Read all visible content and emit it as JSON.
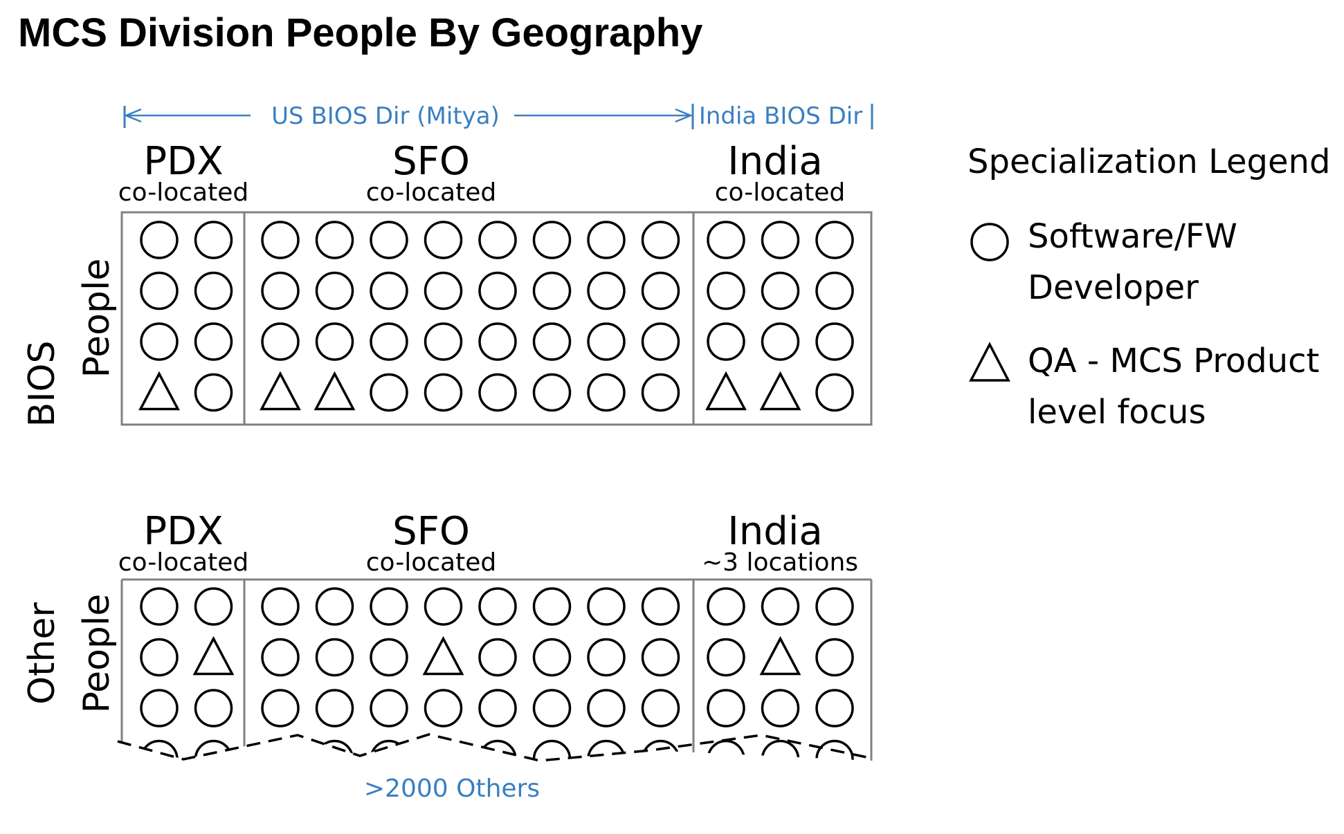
{
  "title": "MCS Division People By Geography",
  "director_bar": {
    "us_label": "US BIOS Dir (Mitya)",
    "india_label": "India BIOS Dir",
    "color": "#3a7fc0"
  },
  "sections": [
    {
      "row_label": [
        "BIOS",
        "People"
      ],
      "groups": [
        {
          "name": "PDX",
          "sub": "co-located",
          "rows": [
            [
              "circle",
              "circle"
            ],
            [
              "circle",
              "circle"
            ],
            [
              "circle",
              "circle"
            ],
            [
              "triangle",
              "circle"
            ]
          ]
        },
        {
          "name": "SFO",
          "sub": "co-located",
          "rows": [
            [
              "circle",
              "circle",
              "circle",
              "circle",
              "circle",
              "circle",
              "circle",
              "circle"
            ],
            [
              "circle",
              "circle",
              "circle",
              "circle",
              "circle",
              "circle",
              "circle",
              "circle"
            ],
            [
              "circle",
              "circle",
              "circle",
              "circle",
              "circle",
              "circle",
              "circle",
              "circle"
            ],
            [
              "triangle",
              "triangle",
              "circle",
              "circle",
              "circle",
              "circle",
              "circle",
              "circle"
            ]
          ]
        },
        {
          "name": "India",
          "sub": "co-located",
          "rows": [
            [
              "circle",
              "circle",
              "circle"
            ],
            [
              "circle",
              "circle",
              "circle"
            ],
            [
              "circle",
              "circle",
              "circle"
            ],
            [
              "triangle",
              "triangle",
              "circle"
            ]
          ]
        }
      ]
    },
    {
      "row_label": [
        "Other",
        "People"
      ],
      "groups": [
        {
          "name": "PDX",
          "sub": "co-located",
          "rows": [
            [
              "circle",
              "circle"
            ],
            [
              "circle",
              "triangle"
            ],
            [
              "circle",
              "circle"
            ]
          ]
        },
        {
          "name": "SFO",
          "sub": "co-located",
          "rows": [
            [
              "circle",
              "circle",
              "circle",
              "circle",
              "circle",
              "circle",
              "circle",
              "circle"
            ],
            [
              "circle",
              "circle",
              "circle",
              "triangle",
              "circle",
              "circle",
              "circle",
              "circle"
            ],
            [
              "circle",
              "circle",
              "circle",
              "circle",
              "circle",
              "circle",
              "circle",
              "circle"
            ]
          ]
        },
        {
          "name": "India",
          "sub": "~3 locations",
          "rows": [
            [
              "circle",
              "circle",
              "circle"
            ],
            [
              "circle",
              "triangle",
              "circle"
            ],
            [
              "circle",
              "circle",
              "circle"
            ]
          ]
        }
      ],
      "footnote": ">2000 Others"
    }
  ],
  "legend": {
    "title": "Specialization Legend",
    "items": [
      {
        "shape": "circle",
        "lines": [
          "Software/FW",
          "Developer"
        ]
      },
      {
        "shape": "triangle",
        "lines": [
          "QA - MCS Product",
          "level focus"
        ]
      }
    ]
  }
}
